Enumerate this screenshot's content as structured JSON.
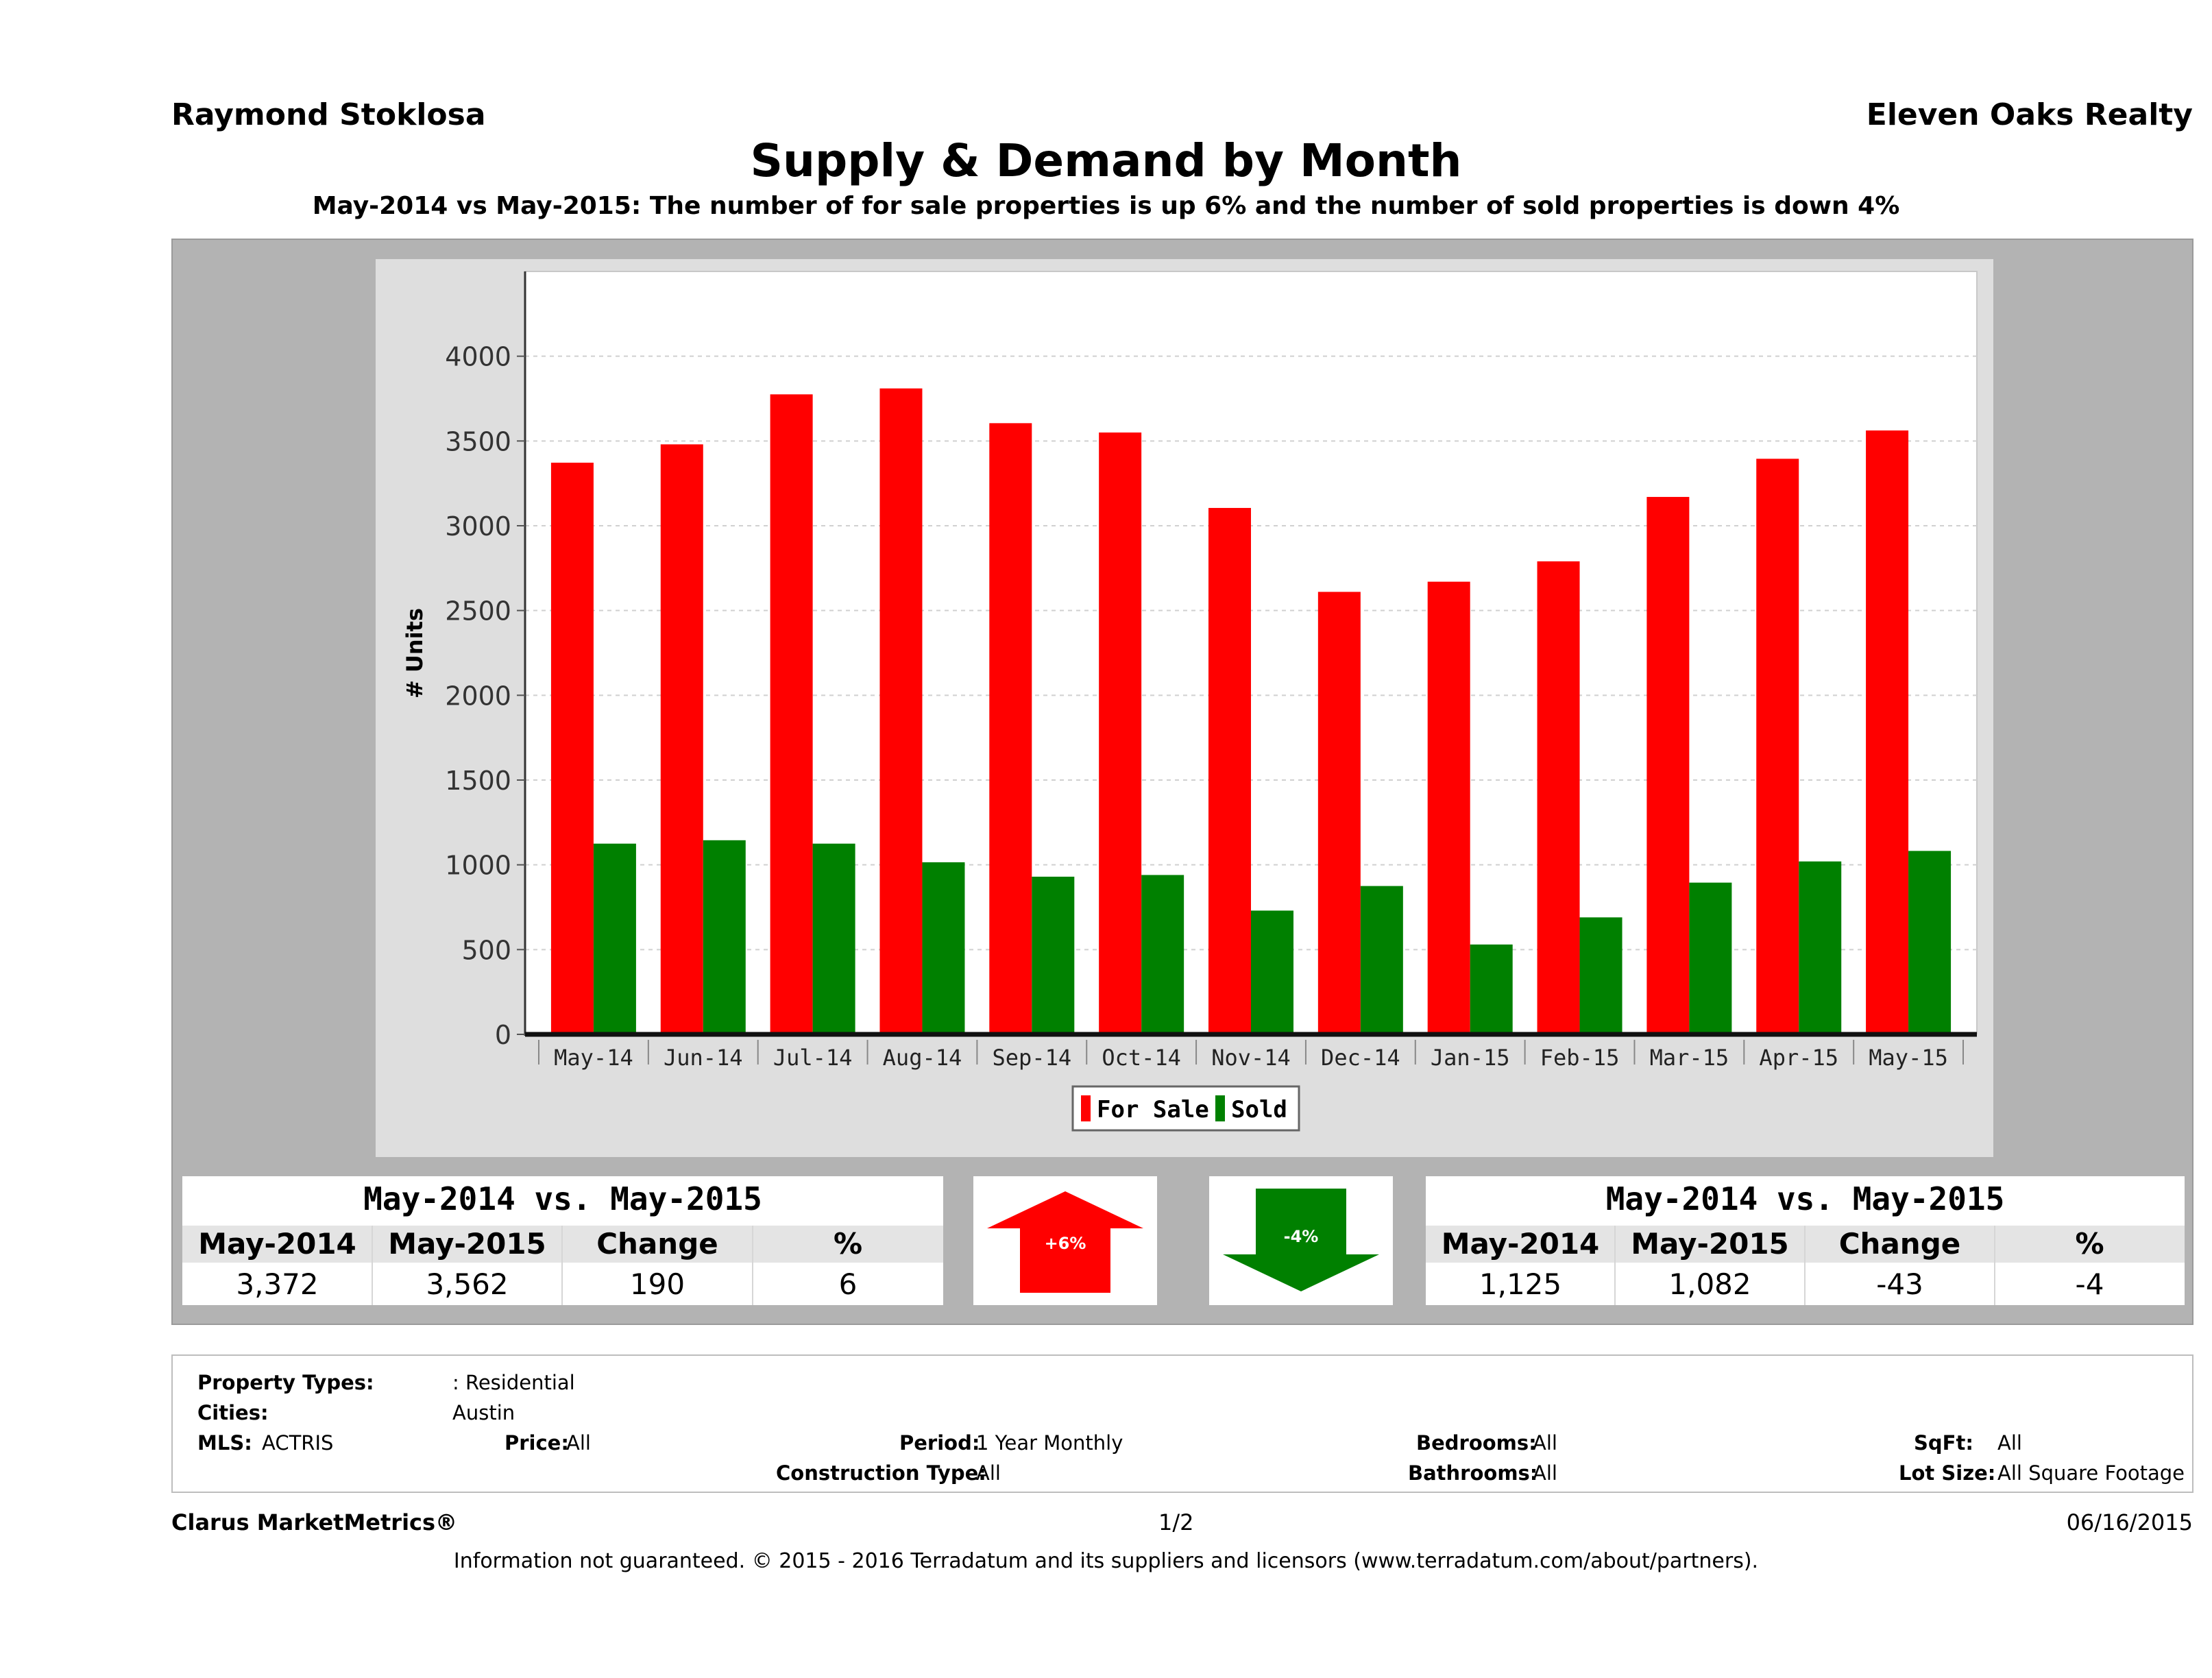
{
  "header": {
    "agent": "Raymond Stoklosa",
    "company": "Eleven Oaks Realty",
    "title": "Supply & Demand by Month",
    "subtitle": "May-2014 vs May-2015: The number of for sale properties is up 6% and the number of sold properties is down 4%"
  },
  "chart_data": {
    "type": "bar",
    "categories": [
      "May-14",
      "Jun-14",
      "Jul-14",
      "Aug-14",
      "Sep-14",
      "Oct-14",
      "Nov-14",
      "Dec-14",
      "Jan-15",
      "Feb-15",
      "Mar-15",
      "Apr-15",
      "May-15"
    ],
    "series": [
      {
        "name": "For Sale",
        "color": "#ff0000",
        "values": [
          3372,
          3480,
          3775,
          3810,
          3605,
          3550,
          3105,
          2610,
          2670,
          2790,
          3170,
          3395,
          3562
        ]
      },
      {
        "name": "Sold",
        "color": "#008000",
        "values": [
          1125,
          1145,
          1125,
          1015,
          930,
          940,
          730,
          875,
          530,
          690,
          895,
          1020,
          1082
        ]
      }
    ],
    "ylabel": "# Units",
    "ylim": [
      0,
      4500
    ],
    "yticks": [
      0,
      500,
      1000,
      1500,
      2000,
      2500,
      3000,
      3500,
      4000
    ],
    "grid": true,
    "legend_position": "bottom-center"
  },
  "summary_for_sale": {
    "title": "May-2014 vs. May-2015",
    "headers": [
      "May-2014",
      "May-2015",
      "Change",
      "%"
    ],
    "values": [
      "3,372",
      "3,562",
      "190",
      "6"
    ],
    "badge": "+6%",
    "direction": "up",
    "color": "#ff0000"
  },
  "summary_sold": {
    "title": "May-2014 vs. May-2015",
    "headers": [
      "May-2014",
      "May-2015",
      "Change",
      "%"
    ],
    "values": [
      "1,125",
      "1,082",
      "-43",
      "-4"
    ],
    "badge": "-4%",
    "direction": "down",
    "color": "#008000"
  },
  "criteria": {
    "property_types_label": "Property Types:",
    "property_types_value": ": Residential",
    "cities_label": "Cities:",
    "cities_value": "Austin",
    "mls_label": "MLS:",
    "mls_value": "ACTRIS",
    "price_label": "Price:",
    "price_value": "All",
    "period_label": "Period:",
    "period_value": "1 Year Monthly",
    "construction_label": "Construction Type:",
    "construction_value": "All",
    "bedrooms_label": "Bedrooms:",
    "bedrooms_value": "All",
    "bathrooms_label": "Bathrooms:",
    "bathrooms_value": "All",
    "sqft_label": "SqFt:",
    "sqft_value": "All",
    "lot_label": "Lot Size:",
    "lot_value": "All Square Footage"
  },
  "footer": {
    "brand": "Clarus MarketMetrics®",
    "page": "1/2",
    "date": "06/16/2015",
    "disclaimer": "Information not guaranteed. © 2015 - 2016 Terradatum and its suppliers and licensors (www.terradatum.com/about/partners)."
  }
}
